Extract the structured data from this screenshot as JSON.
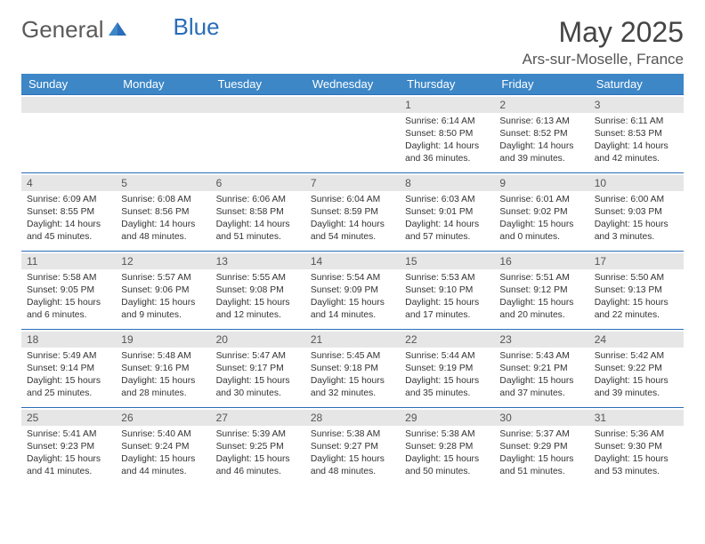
{
  "logo": {
    "text1": "General",
    "text2": "Blue"
  },
  "title": "May 2025",
  "location": "Ars-sur-Moselle, France",
  "colors": {
    "header_bg": "#3d87c7",
    "header_text": "#ffffff",
    "cell_border": "#2a6db8",
    "daynum_bg": "#e6e6e6",
    "text": "#333333",
    "logo_gray": "#5a5a5a",
    "logo_blue": "#2a6db8"
  },
  "day_names": [
    "Sunday",
    "Monday",
    "Tuesday",
    "Wednesday",
    "Thursday",
    "Friday",
    "Saturday"
  ],
  "weeks": [
    [
      null,
      null,
      null,
      null,
      {
        "n": "1",
        "sr": "6:14 AM",
        "ss": "8:50 PM",
        "dl": "14 hours and 36 minutes."
      },
      {
        "n": "2",
        "sr": "6:13 AM",
        "ss": "8:52 PM",
        "dl": "14 hours and 39 minutes."
      },
      {
        "n": "3",
        "sr": "6:11 AM",
        "ss": "8:53 PM",
        "dl": "14 hours and 42 minutes."
      }
    ],
    [
      {
        "n": "4",
        "sr": "6:09 AM",
        "ss": "8:55 PM",
        "dl": "14 hours and 45 minutes."
      },
      {
        "n": "5",
        "sr": "6:08 AM",
        "ss": "8:56 PM",
        "dl": "14 hours and 48 minutes."
      },
      {
        "n": "6",
        "sr": "6:06 AM",
        "ss": "8:58 PM",
        "dl": "14 hours and 51 minutes."
      },
      {
        "n": "7",
        "sr": "6:04 AM",
        "ss": "8:59 PM",
        "dl": "14 hours and 54 minutes."
      },
      {
        "n": "8",
        "sr": "6:03 AM",
        "ss": "9:01 PM",
        "dl": "14 hours and 57 minutes."
      },
      {
        "n": "9",
        "sr": "6:01 AM",
        "ss": "9:02 PM",
        "dl": "15 hours and 0 minutes."
      },
      {
        "n": "10",
        "sr": "6:00 AM",
        "ss": "9:03 PM",
        "dl": "15 hours and 3 minutes."
      }
    ],
    [
      {
        "n": "11",
        "sr": "5:58 AM",
        "ss": "9:05 PM",
        "dl": "15 hours and 6 minutes."
      },
      {
        "n": "12",
        "sr": "5:57 AM",
        "ss": "9:06 PM",
        "dl": "15 hours and 9 minutes."
      },
      {
        "n": "13",
        "sr": "5:55 AM",
        "ss": "9:08 PM",
        "dl": "15 hours and 12 minutes."
      },
      {
        "n": "14",
        "sr": "5:54 AM",
        "ss": "9:09 PM",
        "dl": "15 hours and 14 minutes."
      },
      {
        "n": "15",
        "sr": "5:53 AM",
        "ss": "9:10 PM",
        "dl": "15 hours and 17 minutes."
      },
      {
        "n": "16",
        "sr": "5:51 AM",
        "ss": "9:12 PM",
        "dl": "15 hours and 20 minutes."
      },
      {
        "n": "17",
        "sr": "5:50 AM",
        "ss": "9:13 PM",
        "dl": "15 hours and 22 minutes."
      }
    ],
    [
      {
        "n": "18",
        "sr": "5:49 AM",
        "ss": "9:14 PM",
        "dl": "15 hours and 25 minutes."
      },
      {
        "n": "19",
        "sr": "5:48 AM",
        "ss": "9:16 PM",
        "dl": "15 hours and 28 minutes."
      },
      {
        "n": "20",
        "sr": "5:47 AM",
        "ss": "9:17 PM",
        "dl": "15 hours and 30 minutes."
      },
      {
        "n": "21",
        "sr": "5:45 AM",
        "ss": "9:18 PM",
        "dl": "15 hours and 32 minutes."
      },
      {
        "n": "22",
        "sr": "5:44 AM",
        "ss": "9:19 PM",
        "dl": "15 hours and 35 minutes."
      },
      {
        "n": "23",
        "sr": "5:43 AM",
        "ss": "9:21 PM",
        "dl": "15 hours and 37 minutes."
      },
      {
        "n": "24",
        "sr": "5:42 AM",
        "ss": "9:22 PM",
        "dl": "15 hours and 39 minutes."
      }
    ],
    [
      {
        "n": "25",
        "sr": "5:41 AM",
        "ss": "9:23 PM",
        "dl": "15 hours and 41 minutes."
      },
      {
        "n": "26",
        "sr": "5:40 AM",
        "ss": "9:24 PM",
        "dl": "15 hours and 44 minutes."
      },
      {
        "n": "27",
        "sr": "5:39 AM",
        "ss": "9:25 PM",
        "dl": "15 hours and 46 minutes."
      },
      {
        "n": "28",
        "sr": "5:38 AM",
        "ss": "9:27 PM",
        "dl": "15 hours and 48 minutes."
      },
      {
        "n": "29",
        "sr": "5:38 AM",
        "ss": "9:28 PM",
        "dl": "15 hours and 50 minutes."
      },
      {
        "n": "30",
        "sr": "5:37 AM",
        "ss": "9:29 PM",
        "dl": "15 hours and 51 minutes."
      },
      {
        "n": "31",
        "sr": "5:36 AM",
        "ss": "9:30 PM",
        "dl": "15 hours and 53 minutes."
      }
    ]
  ],
  "labels": {
    "sunrise": "Sunrise:",
    "sunset": "Sunset:",
    "daylight": "Daylight:"
  }
}
